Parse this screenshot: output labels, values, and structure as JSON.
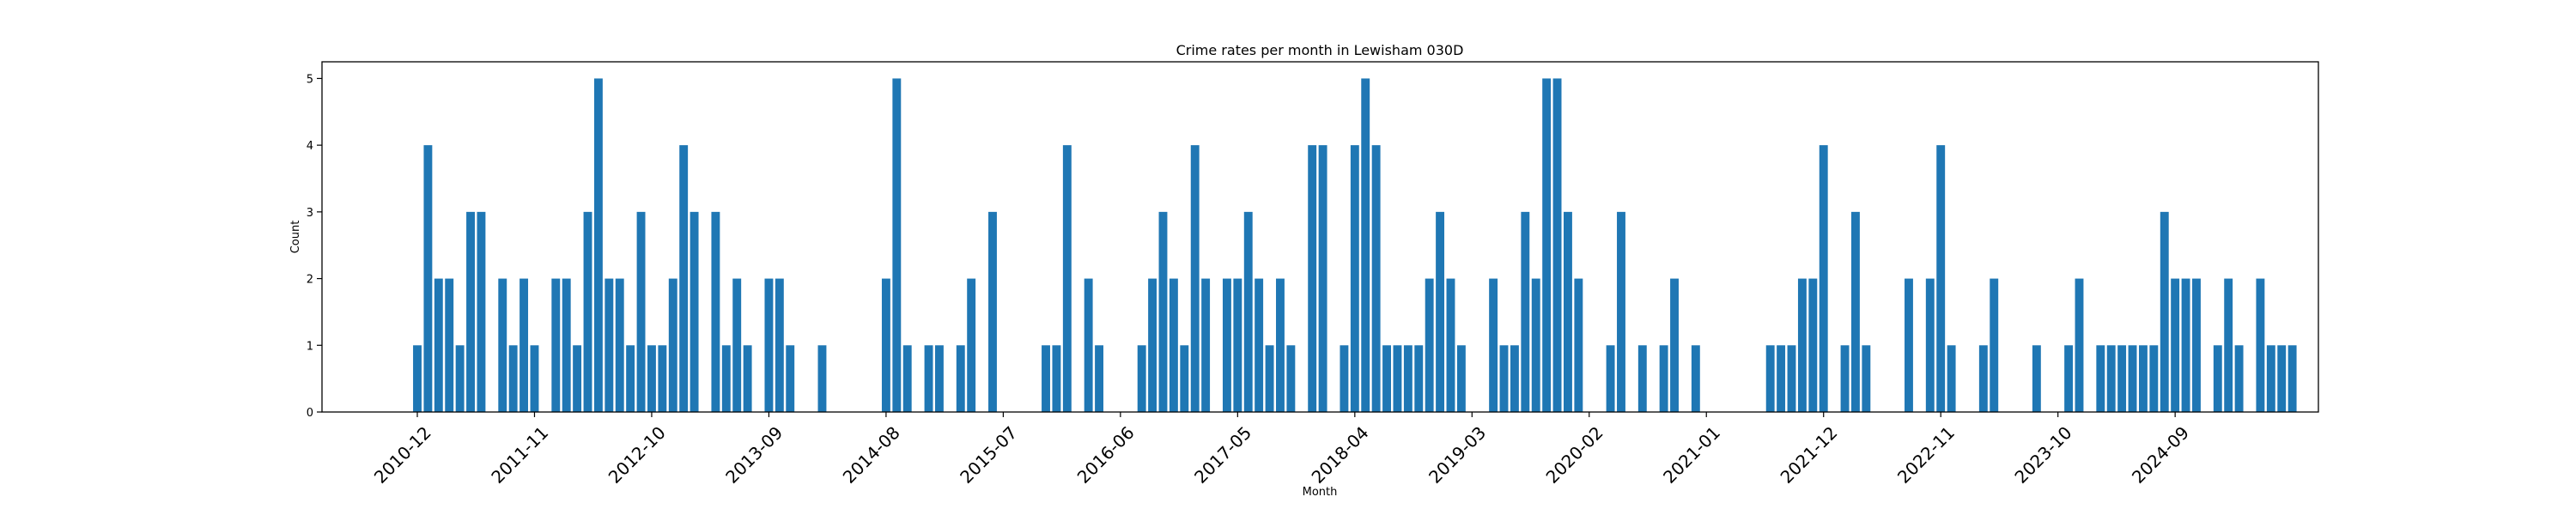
{
  "chart_data": {
    "type": "bar",
    "title": "Crime rates per month in Lewisham 030D",
    "xlabel": "Month",
    "ylabel": "Count",
    "ylim": [
      0,
      5.25
    ],
    "yticks": [
      0,
      1,
      2,
      3,
      4,
      5
    ],
    "grid": false,
    "bar_color": "#1f77b4",
    "xtick_labels": [
      "2010-12",
      "2011-11",
      "2012-10",
      "2013-09",
      "2014-08",
      "2015-07",
      "2016-06",
      "2017-05",
      "2018-04",
      "2019-03",
      "2020-02",
      "2021-01",
      "2021-12",
      "2022-11",
      "2023-10",
      "2024-09"
    ],
    "start_month": "2010-12",
    "values": [
      1,
      4,
      2,
      2,
      1,
      3,
      3,
      0,
      2,
      1,
      2,
      1,
      0,
      2,
      2,
      1,
      3,
      5,
      2,
      2,
      1,
      3,
      1,
      1,
      2,
      4,
      3,
      0,
      3,
      1,
      2,
      1,
      0,
      2,
      2,
      1,
      0,
      0,
      1,
      0,
      0,
      0,
      0,
      0,
      2,
      5,
      1,
      0,
      1,
      1,
      0,
      1,
      2,
      0,
      3,
      0,
      0,
      0,
      0,
      1,
      1,
      4,
      0,
      2,
      1,
      0,
      0,
      0,
      1,
      2,
      3,
      2,
      1,
      4,
      2,
      0,
      2,
      2,
      3,
      2,
      1,
      2,
      1,
      0,
      4,
      4,
      0,
      1,
      4,
      5,
      4,
      1,
      1,
      1,
      1,
      2,
      3,
      2,
      1,
      0,
      0,
      2,
      1,
      1,
      3,
      2,
      5,
      5,
      3,
      2,
      0,
      0,
      1,
      3,
      0,
      1,
      0,
      1,
      2,
      0,
      1,
      0,
      0,
      0,
      0,
      0,
      0,
      1,
      1,
      1,
      2,
      2,
      4,
      0,
      1,
      3,
      1,
      0,
      0,
      0,
      2,
      0,
      2,
      4,
      1,
      0,
      0,
      1,
      2,
      0,
      0,
      0,
      1,
      0,
      0,
      1,
      2,
      0,
      1,
      1,
      1,
      1,
      1,
      1,
      3,
      2,
      2,
      2,
      0,
      1,
      2,
      1,
      0,
      2,
      1,
      1,
      1
    ]
  }
}
